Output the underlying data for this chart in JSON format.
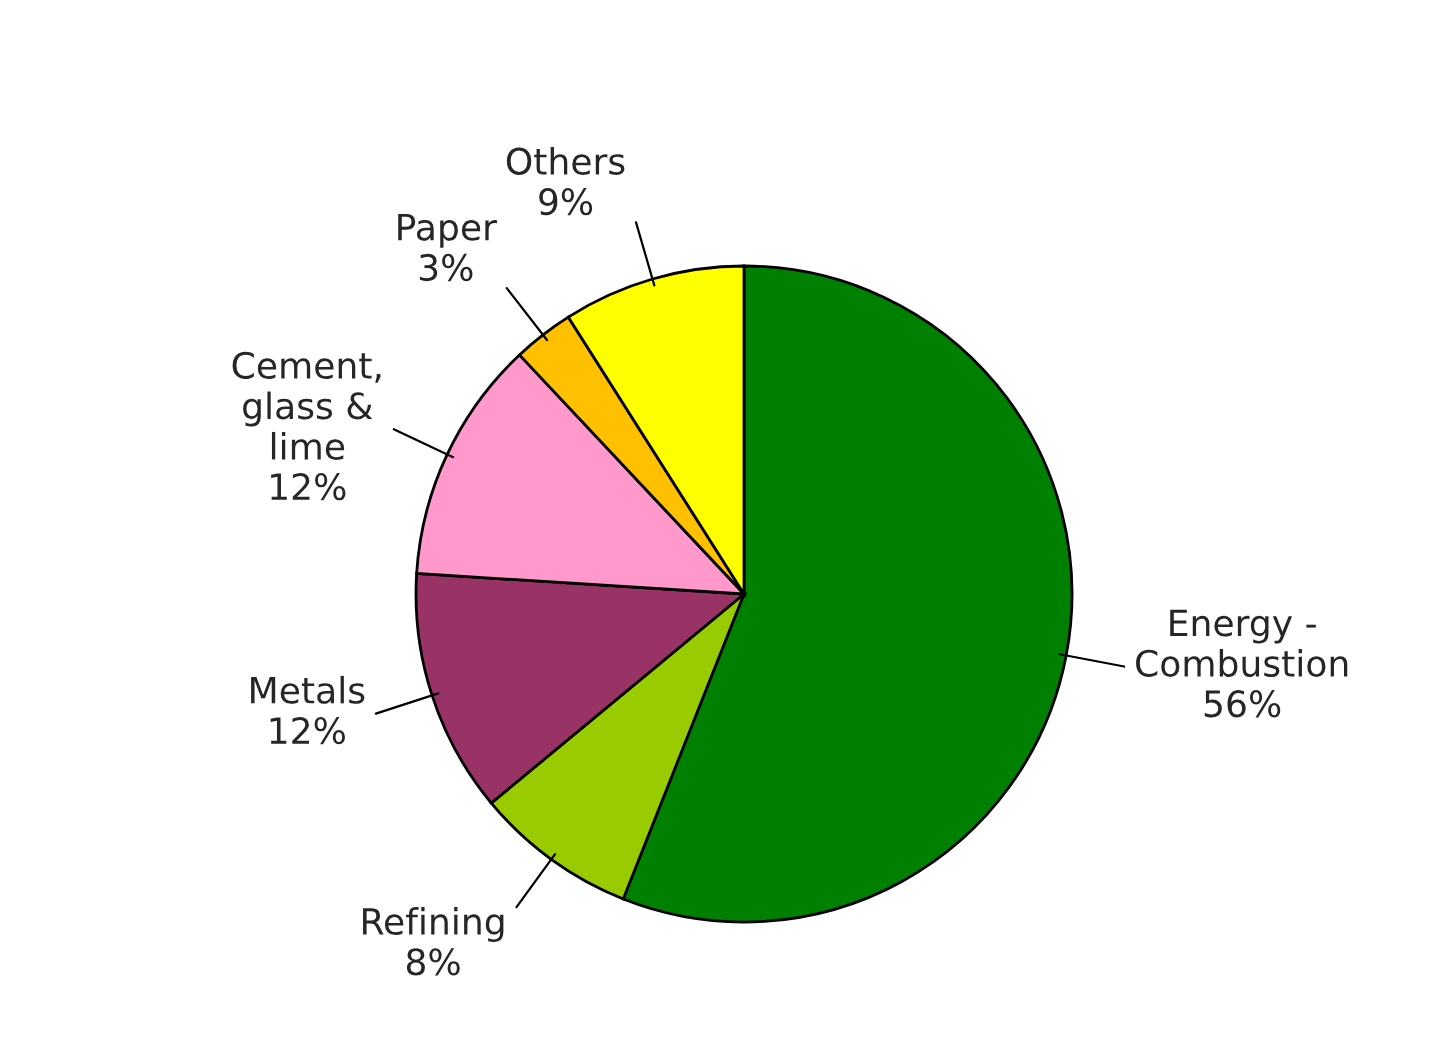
{
  "chart_data": {
    "type": "pie",
    "categories": [
      "Energy -\nCombustion",
      "Refining",
      "Metals",
      "Cement,\nglass &\nlime",
      "Paper",
      "Others"
    ],
    "values": [
      56,
      8,
      12,
      12,
      3,
      9
    ],
    "value_labels": [
      "56%",
      "8%",
      "12%",
      "12%",
      "3%",
      "9%"
    ],
    "colors": [
      "#008000",
      "#99cc00",
      "#993366",
      "#ff99cc",
      "#ffc000",
      "#ffff00"
    ],
    "legend": false
  }
}
